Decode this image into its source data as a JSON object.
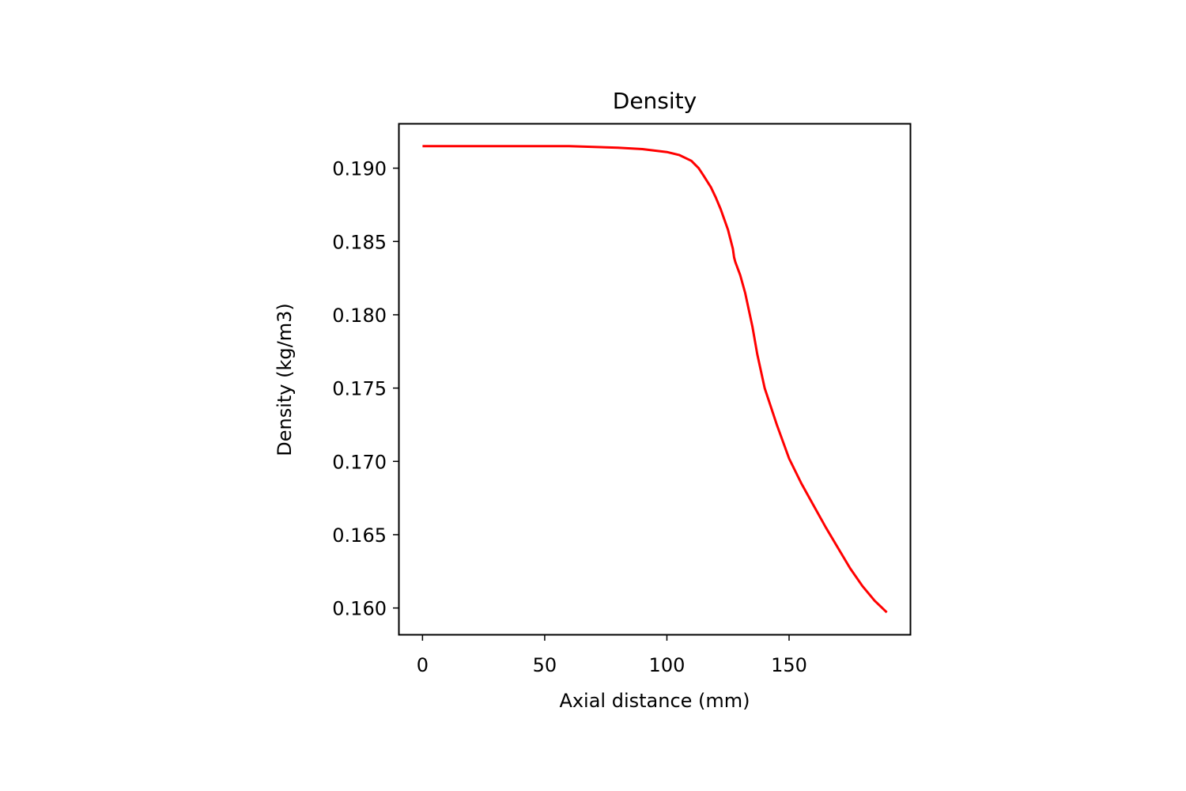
{
  "chart_data": {
    "type": "line",
    "title": "Density",
    "xlabel": "Axial distance (mm)",
    "ylabel": "Density (kg/m3)",
    "xlim": [
      -9.5,
      199.5
    ],
    "ylim": [
      0.1582,
      0.193
    ],
    "xticks": [
      0,
      50,
      100,
      150
    ],
    "xtick_labels": [
      "0",
      "50",
      "100",
      "150"
    ],
    "yticks": [
      0.16,
      0.165,
      0.17,
      0.175,
      0.18,
      0.185,
      0.19
    ],
    "ytick_labels": [
      "0.160",
      "0.165",
      "0.170",
      "0.175",
      "0.180",
      "0.185",
      "0.190"
    ],
    "grid": false,
    "legend": null,
    "series": [
      {
        "name": "Density",
        "color": "#ff0000",
        "x": [
          0,
          20,
          40,
          60,
          80,
          90,
          100,
          105,
          110,
          113,
          115,
          118,
          120,
          122,
          125,
          127,
          127.5,
          128,
          130,
          132,
          135,
          137,
          140,
          145,
          150,
          155,
          160,
          165,
          170,
          175,
          180,
          185,
          190
        ],
        "y": [
          0.1915,
          0.1915,
          0.1915,
          0.1915,
          0.1914,
          0.1913,
          0.1911,
          0.1909,
          0.1905,
          0.19,
          0.1895,
          0.1887,
          0.188,
          0.1872,
          0.1858,
          0.1845,
          0.1839,
          0.1836,
          0.1827,
          0.1815,
          0.1792,
          0.1773,
          0.175,
          0.1725,
          0.1702,
          0.1685,
          0.167,
          0.1655,
          0.1641,
          0.1627,
          0.1615,
          0.1605,
          0.1597
        ]
      }
    ]
  }
}
